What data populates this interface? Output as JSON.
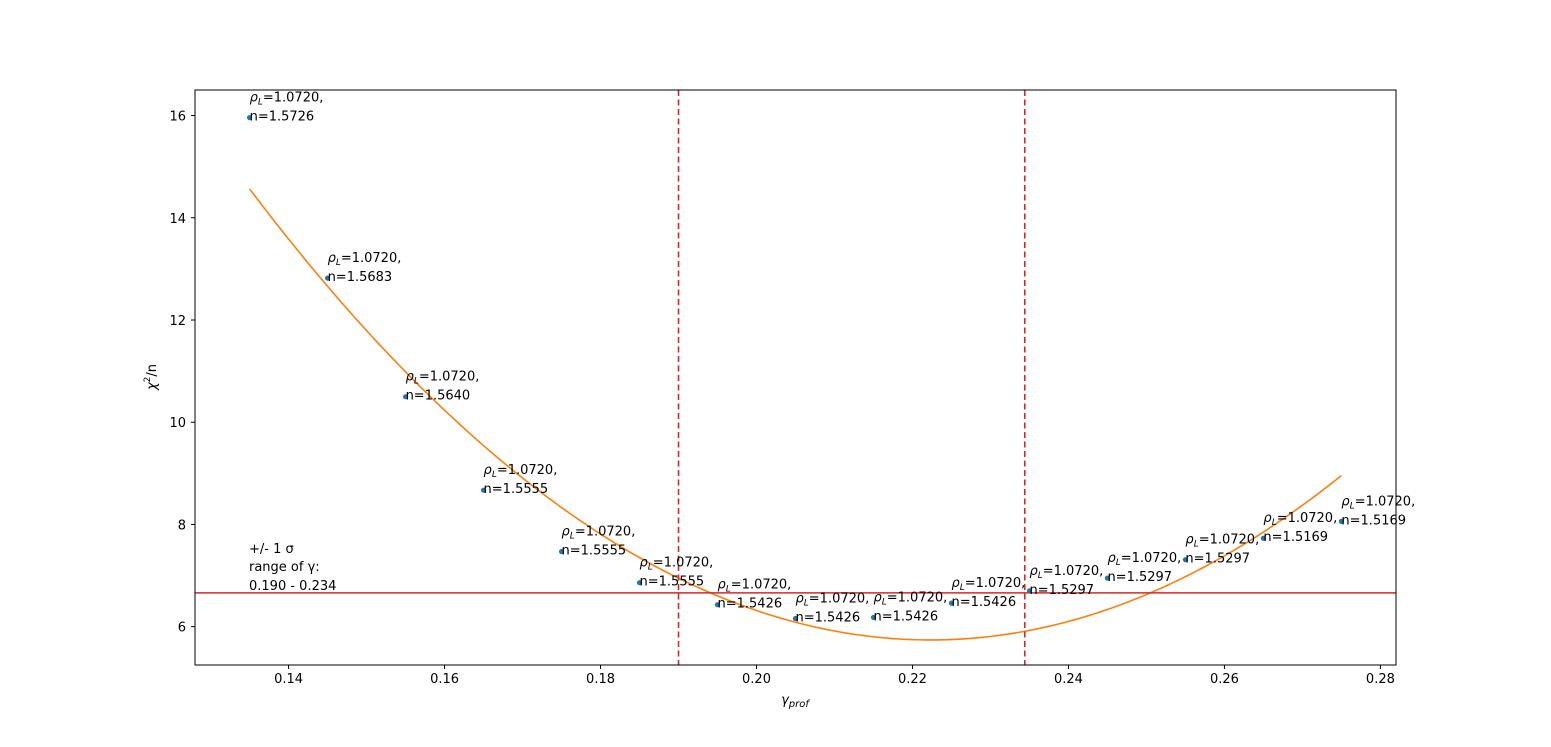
{
  "chart_data": {
    "type": "scatter",
    "xlabel": "γprof",
    "ylabel": "χ²/n",
    "xlim": [
      0.128,
      0.282
    ],
    "ylim": [
      5.25,
      16.5
    ],
    "x_ticks": [
      0.14,
      0.16,
      0.18,
      0.2,
      0.22,
      0.24,
      0.26,
      0.28
    ],
    "x_tick_labels": [
      "0.14",
      "0.16",
      "0.18",
      "0.20",
      "0.22",
      "0.24",
      "0.26",
      "0.28"
    ],
    "y_ticks": [
      6,
      8,
      10,
      12,
      14,
      16
    ],
    "y_tick_labels": [
      "6",
      "8",
      "10",
      "12",
      "14",
      "16"
    ],
    "grid": false,
    "points": {
      "color": "#1f77b4",
      "x": [
        0.135,
        0.145,
        0.155,
        0.165,
        0.175,
        0.185,
        0.195,
        0.205,
        0.215,
        0.225,
        0.235,
        0.245,
        0.255,
        0.265,
        0.275
      ],
      "y": [
        15.96,
        12.82,
        10.5,
        8.67,
        7.47,
        6.86,
        6.43,
        6.16,
        6.18,
        6.46,
        6.7,
        6.95,
        7.31,
        7.73,
        8.06
      ],
      "labels": [
        [
          "ρL=1.0720,",
          "n=1.5726"
        ],
        [
          "ρL=1.0720,",
          "n=1.5683"
        ],
        [
          "ρL=1.0720,",
          "n=1.5640"
        ],
        [
          "ρL=1.0720,",
          "n=1.5555"
        ],
        [
          "ρL=1.0720,",
          "n=1.5555"
        ],
        [
          "ρL=1.0720,",
          "n=1.5555"
        ],
        [
          "ρL=1.0720,",
          "n=1.5426"
        ],
        [
          "ρL=1.0720,",
          "n=1.5426"
        ],
        [
          "ρL=1.0720,",
          "n=1.5426"
        ],
        [
          "ρL=1.0720,",
          "n=1.5426"
        ],
        [
          "ρL=1.0720,",
          "n=1.5297"
        ],
        [
          "ρL=1.0720,",
          "n=1.5297"
        ],
        [
          "ρL=1.0720,",
          "n=1.5297"
        ],
        [
          "ρL=1.0720,",
          "n=1.5169"
        ],
        [
          "ρL=1.0720,",
          "n=1.5169"
        ]
      ]
    },
    "fit_curve": {
      "color": "#ff7f0e",
      "type": "quadratic",
      "vertex_x": 0.2223,
      "vertex_y": 5.74,
      "curvature": 1158,
      "x_range": [
        0.135,
        0.275
      ]
    },
    "threshold_line": {
      "color": "#d62728",
      "y": 6.66,
      "style": "solid"
    },
    "sigma_lines": {
      "color": "#d62728",
      "x": [
        0.19,
        0.2344
      ],
      "style": "dashed"
    },
    "annotation": {
      "line1": "+/- 1 σ",
      "line2": "range of γ:",
      "line3": "0.190 - 0.234"
    }
  }
}
